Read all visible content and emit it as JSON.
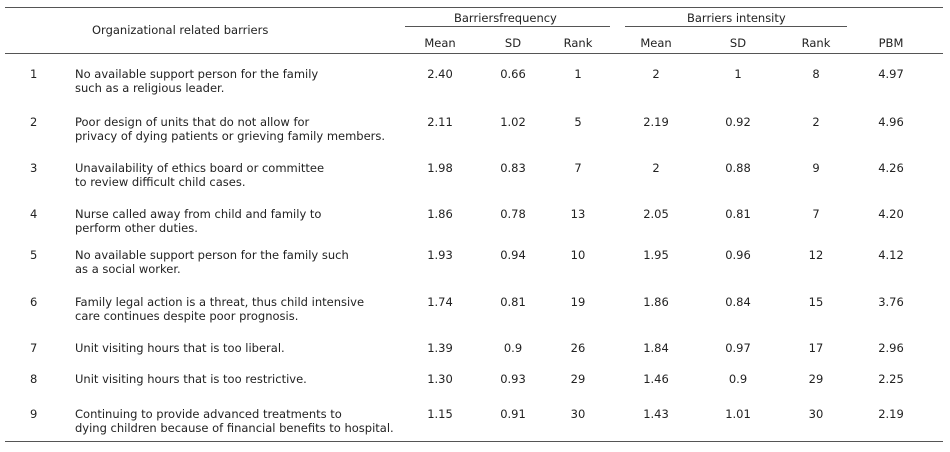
{
  "header": {
    "barrier_col": "Organizational related barriers",
    "group_frequency": "Barriersfrequency",
    "group_intensity": "Barriers intensity",
    "freq_mean": "Mean",
    "freq_sd": "SD",
    "freq_rank": "Rank",
    "int_mean": "Mean",
    "int_sd": "SD",
    "int_rank": "Rank",
    "pbm": "PBM"
  },
  "rows": [
    {
      "no": "1",
      "line1": "No available support person for the family",
      "line2": "such as a religious leader.",
      "f_mean": "2.40",
      "f_sd": "0.66",
      "f_rank": "1",
      "i_mean": "2",
      "i_sd": "1",
      "i_rank": "8",
      "pbm": "4.97"
    },
    {
      "no": "2",
      "line1": "Poor design of units that do not allow for",
      "line2": "privacy of dying patients or grieving family members.",
      "f_mean": "2.11",
      "f_sd": "1.02",
      "f_rank": "5",
      "i_mean": "2.19",
      "i_sd": "0.92",
      "i_rank": "2",
      "pbm": "4.96"
    },
    {
      "no": "3",
      "line1": "Unavailability of ethics board or committee",
      "line2": "to review difficult child cases.",
      "f_mean": "1.98",
      "f_sd": "0.83",
      "f_rank": "7",
      "i_mean": "2",
      "i_sd": "0.88",
      "i_rank": "9",
      "pbm": "4.26"
    },
    {
      "no": "4",
      "line1": "Nurse called away from child and family to",
      "line2": "perform other duties.",
      "f_mean": "1.86",
      "f_sd": "0.78",
      "f_rank": "13",
      "i_mean": "2.05",
      "i_sd": "0.81",
      "i_rank": "7",
      "pbm": "4.20"
    },
    {
      "no": "5",
      "line1": "No available support person for the family such",
      "line2": "as a social worker.",
      "f_mean": "1.93",
      "f_sd": "0.94",
      "f_rank": "10",
      "i_mean": "1.95",
      "i_sd": "0.96",
      "i_rank": "12",
      "pbm": "4.12"
    },
    {
      "no": "6",
      "line1": "Family legal action is a threat, thus child intensive",
      "line2": "care continues despite poor prognosis.",
      "f_mean": "1.74",
      "f_sd": "0.81",
      "f_rank": "19",
      "i_mean": "1.86",
      "i_sd": "0.84",
      "i_rank": "15",
      "pbm": "3.76"
    },
    {
      "no": "7",
      "line1": "Unit visiting hours that is too liberal.",
      "line2": "",
      "f_mean": "1.39",
      "f_sd": "0.9",
      "f_rank": "26",
      "i_mean": "1.84",
      "i_sd": "0.97",
      "i_rank": "17",
      "pbm": "2.96"
    },
    {
      "no": "8",
      "line1": "Unit visiting hours that is too restrictive.",
      "line2": "",
      "f_mean": "1.30",
      "f_sd": "0.93",
      "f_rank": "29",
      "i_mean": "1.46",
      "i_sd": "0.9",
      "i_rank": "29",
      "pbm": "2.25"
    },
    {
      "no": "9",
      "line1": "Continuing to provide advanced treatments to",
      "line2": "dying children because of financial benefits to hospital.",
      "f_mean": "1.15",
      "f_sd": "0.91",
      "f_rank": "30",
      "i_mean": "1.43",
      "i_sd": "1.01",
      "i_rank": "30",
      "pbm": "2.19"
    }
  ]
}
